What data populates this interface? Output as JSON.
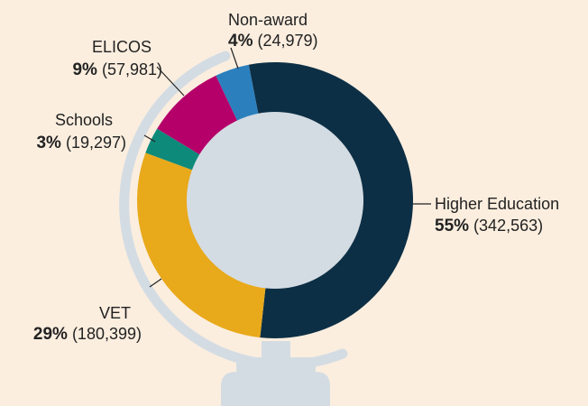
{
  "chart_data": {
    "type": "donut",
    "categories": [
      "Higher Education",
      "VET",
      "Schools",
      "ELICOS",
      "Non-award"
    ],
    "values": [
      342563,
      180399,
      19297,
      57981,
      24979
    ],
    "value_labels": [
      "(342,563)",
      "(180,399)",
      "(19,297)",
      "(57,981)",
      "(24,979)"
    ],
    "percents": [
      55,
      29,
      3,
      9,
      4
    ],
    "percent_labels": [
      "55%",
      "29%",
      "3%",
      "9%",
      "4%"
    ],
    "colors": [
      "#0d2f45",
      "#e8a91b",
      "#0e8a7a",
      "#b5006a",
      "#2b7fbd"
    ]
  }
}
